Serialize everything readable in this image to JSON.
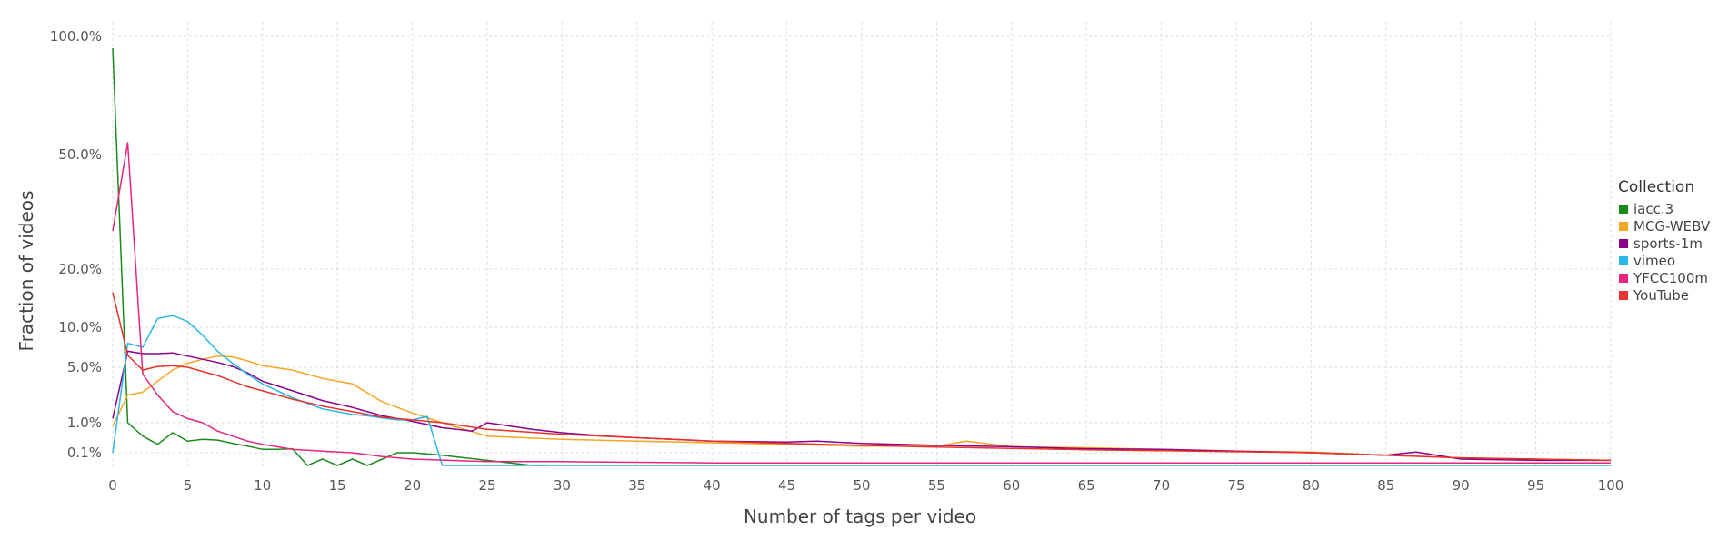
{
  "chart_data": {
    "type": "line",
    "title": "",
    "xlabel": "Number of tags per video",
    "ylabel": "Fraction of videos",
    "xlim": [
      0,
      100
    ],
    "x_ticks": [
      0,
      5,
      10,
      15,
      20,
      25,
      30,
      35,
      40,
      45,
      50,
      55,
      60,
      65,
      70,
      75,
      80,
      85,
      90,
      95,
      100
    ],
    "y_ticks": [
      {
        "value": 0.1,
        "label": "0.1%"
      },
      {
        "value": 1.0,
        "label": "1.0%"
      },
      {
        "value": 5.0,
        "label": "5.0%"
      },
      {
        "value": 10.0,
        "label": "10.0%"
      },
      {
        "value": 20.0,
        "label": "20.0%"
      },
      {
        "value": 50.0,
        "label": "50.0%"
      },
      {
        "value": 100.0,
        "label": "100.0%"
      }
    ],
    "y_scale": "nonlinear (percent)",
    "grid": true,
    "legend": {
      "title": "Collection",
      "placement": "right"
    },
    "series": [
      {
        "name": "iacc.3",
        "color": "#1a8a1a",
        "x": [
          0,
          1,
          2,
          3,
          4,
          5,
          6,
          7,
          8,
          9,
          10,
          11,
          12,
          13,
          14,
          15,
          16,
          17,
          18,
          19,
          20,
          22,
          25,
          28,
          29
        ],
        "y": [
          95,
          1.0,
          0.6,
          0.35,
          0.7,
          0.45,
          0.5,
          0.48,
          0.38,
          0.3,
          0.2,
          0.2,
          0.22,
          0.0,
          0.05,
          0.0,
          0.05,
          0.0,
          0.05,
          0.1,
          0.1,
          0.08,
          0.04,
          0.0,
          0.0
        ]
      },
      {
        "name": "MCG-WEBV",
        "color": "#f5a623",
        "x": [
          0,
          1,
          2,
          3,
          4,
          5,
          6,
          7,
          8,
          9,
          10,
          12,
          14,
          16,
          18,
          20,
          22,
          25,
          30,
          35,
          40,
          45,
          50,
          55,
          57,
          60,
          65,
          70,
          75,
          80,
          85,
          90,
          95,
          100
        ],
        "y": [
          0.9,
          3.0,
          3.2,
          4.0,
          4.8,
          5.5,
          6.0,
          6.4,
          6.3,
          5.8,
          5.2,
          4.8,
          4.2,
          3.8,
          2.5,
          1.7,
          1.0,
          0.6,
          0.5,
          0.45,
          0.4,
          0.35,
          0.3,
          0.3,
          0.45,
          0.28,
          0.25,
          0.2,
          0.15,
          0.12,
          0.08,
          0.06,
          0.05,
          0.04
        ]
      },
      {
        "name": "sports-1m",
        "color": "#8b008b",
        "x": [
          0,
          1,
          2,
          3,
          4,
          5,
          6,
          7,
          8,
          9,
          10,
          12,
          14,
          16,
          18,
          20,
          22,
          24,
          25,
          28,
          30,
          33,
          35,
          40,
          45,
          47,
          50,
          55,
          60,
          65,
          70,
          75,
          80,
          85,
          87,
          90,
          95,
          100
        ],
        "y": [
          1.3,
          7.0,
          6.7,
          6.7,
          6.8,
          6.4,
          6.0,
          5.6,
          5.1,
          4.6,
          4.0,
          3.3,
          2.6,
          2.1,
          1.5,
          1.1,
          0.85,
          0.75,
          1.0,
          0.8,
          0.7,
          0.6,
          0.55,
          0.45,
          0.42,
          0.45,
          0.38,
          0.32,
          0.28,
          0.22,
          0.2,
          0.15,
          0.1,
          0.08,
          0.12,
          0.05,
          0.04,
          0.04
        ]
      },
      {
        "name": "vimeo",
        "color": "#29b6e8",
        "x": [
          0,
          1,
          2,
          3,
          4,
          5,
          6,
          7,
          8,
          9,
          10,
          12,
          14,
          16,
          17,
          18,
          19,
          20,
          21,
          22,
          25,
          30,
          40,
          50,
          60,
          70,
          80,
          90,
          100
        ],
        "y": [
          0.1,
          8.0,
          7.5,
          11.5,
          12.0,
          11.0,
          9.0,
          7.0,
          5.5,
          4.5,
          3.8,
          2.8,
          2.0,
          1.6,
          1.5,
          1.35,
          1.2,
          1.2,
          1.45,
          0.0,
          0.0,
          0.0,
          0.0,
          0.0,
          0.0,
          0.0,
          0.0,
          0.0,
          0.0
        ]
      },
      {
        "name": "YFCC100m",
        "color": "#e8247c",
        "x": [
          0,
          1,
          2,
          3,
          4,
          5,
          6,
          7,
          8,
          9,
          10,
          12,
          14,
          16,
          18,
          20,
          25,
          30,
          40,
          50,
          60,
          70,
          80,
          90,
          100
        ],
        "y": [
          30,
          55,
          4.5,
          3.0,
          1.8,
          1.3,
          1.0,
          0.75,
          0.6,
          0.45,
          0.35,
          0.2,
          0.15,
          0.1,
          0.07,
          0.05,
          0.03,
          0.03,
          0.02,
          0.02,
          0.02,
          0.02,
          0.02,
          0.02,
          0.02
        ]
      },
      {
        "name": "YouTube",
        "color": "#e8322a",
        "x": [
          0,
          1,
          2,
          3,
          4,
          5,
          6,
          7,
          8,
          9,
          10,
          12,
          14,
          16,
          18,
          20,
          22,
          25,
          30,
          35,
          40,
          45,
          50,
          55,
          60,
          65,
          70,
          75,
          80,
          85,
          90,
          95,
          100
        ],
        "y": [
          16.0,
          6.5,
          4.8,
          5.1,
          5.2,
          5.0,
          4.7,
          4.4,
          4.0,
          3.6,
          3.3,
          2.7,
          2.2,
          1.8,
          1.4,
          1.2,
          1.0,
          0.8,
          0.65,
          0.55,
          0.45,
          0.38,
          0.32,
          0.27,
          0.23,
          0.19,
          0.16,
          0.13,
          0.1,
          0.08,
          0.06,
          0.05,
          0.04
        ]
      }
    ]
  }
}
